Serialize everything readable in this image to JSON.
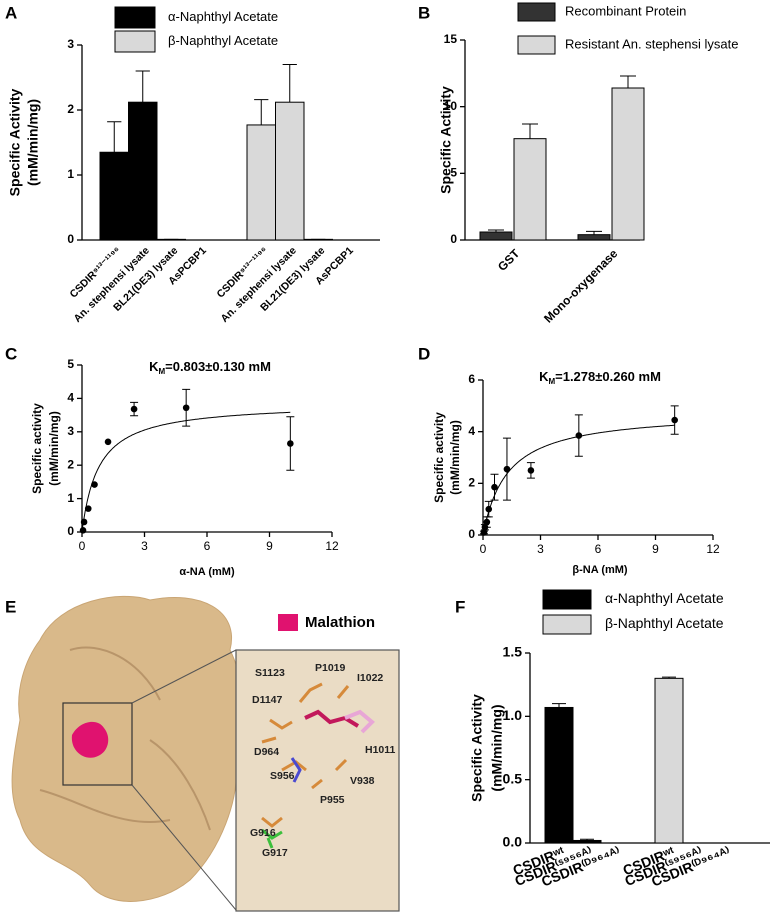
{
  "chart_data": [
    {
      "type": "bar",
      "label": "A",
      "group_by": "series",
      "ylabel": [
        "Specific Activity",
        "(mM/min/mg)"
      ],
      "categories": [
        "CSDIR⁹¹³⁻¹¹⁹⁶",
        "An. stephensi lysate",
        "BL21(DE3) lysate",
        "AsPCBP1"
      ],
      "series": [
        {
          "name": "α-Naphthyl Acetate",
          "color": "#000000",
          "values": [
            1.35,
            2.12,
            0.01,
            0
          ],
          "errors": [
            0.47,
            0.48,
            0,
            0
          ]
        },
        {
          "name": "β-Naphthyl Acetate",
          "color": "#d9d9d9",
          "values": [
            1.77,
            2.12,
            0.01,
            0
          ],
          "errors": [
            0.39,
            0.58,
            0,
            0
          ]
        }
      ],
      "ylim": [
        0,
        3
      ],
      "yticks": [
        0,
        1,
        2,
        3
      ]
    },
    {
      "type": "bar",
      "label": "B",
      "group_by": "category",
      "ylabel": [
        "Specific Activity"
      ],
      "categories": [
        "GST",
        "Mono-oxygenase"
      ],
      "series": [
        {
          "name": "Recombinant Protein",
          "color": "#333333",
          "values": [
            0.6,
            0.4
          ],
          "errors": [
            0.15,
            0.25
          ]
        },
        {
          "name": "Resistant An. stephensi lysate",
          "color": "#d9d9d9",
          "values": [
            7.6,
            11.4
          ],
          "errors": [
            1.1,
            0.9
          ]
        }
      ],
      "ylim": [
        0,
        15
      ],
      "yticks": [
        0,
        5,
        10,
        15
      ]
    },
    {
      "type": "scatter",
      "label": "C",
      "annotation": {
        "base": "K",
        "sub": "M",
        "text": "=0.803±0.130 mM"
      },
      "xlabel": "α-NA (mM)",
      "ylabel": [
        "Specific activity",
        "(mM/min/mg)"
      ],
      "x": [
        0.05,
        0.1,
        0.3,
        0.6,
        1.25,
        2.5,
        5,
        10
      ],
      "y": [
        0.05,
        0.3,
        0.7,
        1.42,
        2.7,
        3.68,
        3.72,
        2.65
      ],
      "errors": [
        null,
        null,
        null,
        null,
        null,
        0.2,
        0.55,
        0.8
      ],
      "fit": {
        "vmax": 3.87,
        "km": 0.803
      },
      "xlim": [
        0,
        12
      ],
      "xticks": [
        0,
        3,
        6,
        9,
        12
      ],
      "ylim": [
        0,
        5
      ],
      "yticks": [
        0,
        1,
        2,
        3,
        4,
        5
      ]
    },
    {
      "type": "scatter",
      "label": "D",
      "annotation": {
        "base": "K",
        "sub": "M",
        "text": "=1.278±0.260 mM"
      },
      "xlabel": "β-NA (mM)",
      "ylabel": [
        "Specific activity",
        "(mM/min/mg)"
      ],
      "x": [
        0.05,
        0.1,
        0.2,
        0.3,
        0.6,
        1.25,
        2.5,
        5,
        10
      ],
      "y": [
        0.1,
        0.3,
        0.5,
        1.0,
        1.85,
        2.55,
        2.5,
        3.85,
        4.45
      ],
      "errors": [
        0.05,
        0.1,
        0.2,
        0.3,
        0.5,
        1.2,
        0.3,
        0.8,
        0.55
      ],
      "fit": {
        "vmax": 4.79,
        "km": 1.278
      },
      "xlim": [
        0,
        12
      ],
      "xticks": [
        0,
        3,
        6,
        9,
        12
      ],
      "ylim": [
        0,
        6
      ],
      "yticks": [
        0,
        2,
        4,
        6
      ]
    },
    {
      "type": "bar",
      "label": "F",
      "group_by": "series",
      "ylabel": [
        "Specific Activity",
        "(mM/min/mg)"
      ],
      "categories": [
        "CSDIRʷᵗ",
        "CSDIR⁽ˢ⁹⁵⁶ᴬ⁾",
        "CSDIR⁽ᴰ⁹⁶⁴ᴬ⁾"
      ],
      "series": [
        {
          "name": "α-Naphthyl Acetate",
          "color": "#000000",
          "values": [
            1.07,
            0.02,
            0
          ],
          "errors": [
            0.03,
            0.01,
            0
          ]
        },
        {
          "name": "β-Naphthyl Acetate",
          "color": "#d9d9d9",
          "values": [
            1.3,
            0,
            0
          ],
          "errors": [
            0.01,
            0,
            0
          ]
        }
      ],
      "ylim": [
        0,
        1.5
      ],
      "yticks": [
        {
          "value": 0,
          "label": "0.0"
        },
        {
          "value": 0.5,
          "label": "0.5"
        },
        {
          "value": 1,
          "label": "1.0"
        },
        {
          "value": 1.5,
          "label": "1.5"
        }
      ]
    }
  ],
  "panel_e": {
    "label": "E",
    "legend": "Malathion",
    "residues": [
      "S1123",
      "P1019",
      "I1022",
      "D1147",
      "H1011",
      "D964",
      "S956",
      "V938",
      "P955",
      "G916",
      "G917"
    ]
  }
}
